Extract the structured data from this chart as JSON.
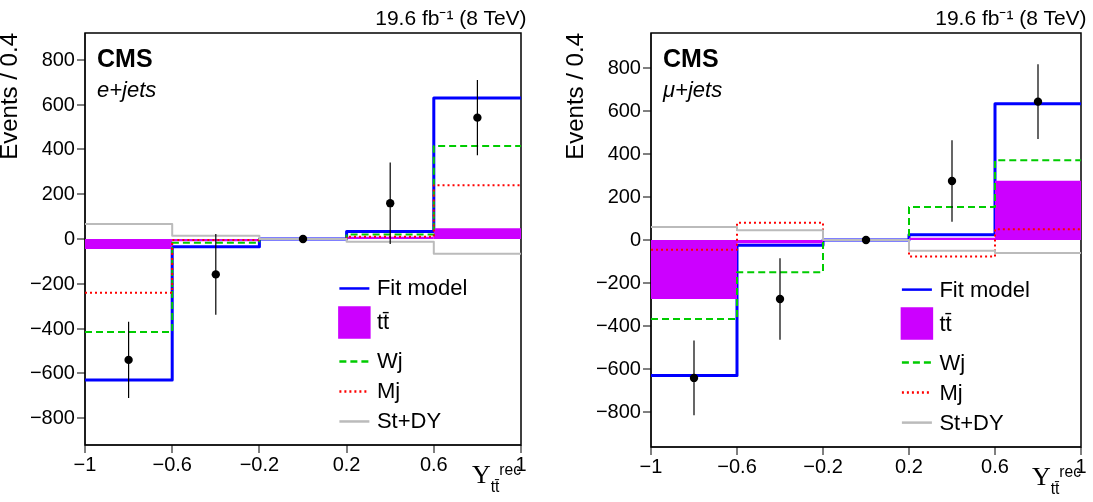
{
  "chart_data": [
    {
      "type": "histogram",
      "title": "19.6 fb⁻¹ (8 TeV)",
      "xlabel": "Υ$_{tt̄}$$^{rec}$",
      "ylabel": "Events / 0.4",
      "annotations": [
        "CMS",
        "e+jets"
      ],
      "bins": [
        -1,
        -0.6,
        -0.2,
        0.2,
        0.6,
        1
      ],
      "xlim": [
        -1,
        1
      ],
      "xticks": [
        {
          "value": -1,
          "label": "−1"
        },
        {
          "value": -0.6,
          "label": "−0.6"
        },
        {
          "value": -0.2,
          "label": "−0.2"
        },
        0.2,
        0.6,
        1
      ],
      "ylim": [
        -920,
        920
      ],
      "yticks": [
        {
          "value": -800,
          "label": "−800"
        },
        {
          "value": -600,
          "label": "−600"
        },
        {
          "value": -400,
          "label": "−400"
        },
        {
          "value": -200,
          "label": "−200"
        },
        0,
        200,
        400,
        600,
        800
      ],
      "legend": "bottom right",
      "series": [
        {
          "name": "Fit model",
          "type": "step",
          "color": "#0000ff",
          "line_style": "solid",
          "x": [
            -1,
            -0.6,
            -0.2,
            0.2,
            0.6,
            1
          ],
          "values": [
            -630,
            -35,
            0,
            33,
            630,
            630
          ]
        },
        {
          "name": "tt̄",
          "color": "#cc00ff",
          "values": [
            -45,
            -10,
            0,
            10,
            48
          ]
        },
        {
          "name": "Wj",
          "type": "step",
          "color": "#00cc00",
          "line_style": "dashed",
          "x": [
            -1,
            -0.6,
            -0.2,
            0.2,
            0.6,
            1
          ],
          "values": [
            -415,
            -17,
            0,
            20,
            415,
            415
          ]
        },
        {
          "name": "Mj",
          "type": "step",
          "color": "#ff0000",
          "line_style": "dotted",
          "x": [
            -1,
            -0.6,
            -0.2,
            0.2,
            0.6,
            1
          ],
          "values": [
            -240,
            -5,
            0,
            10,
            240,
            240
          ]
        },
        {
          "name": "St+DY",
          "type": "step",
          "color": "#bbbbbb",
          "line_style": "solid",
          "x": [
            -1,
            -0.6,
            -0.2,
            0.2,
            0.6,
            1
          ],
          "values": [
            67,
            14,
            0,
            -12,
            -66,
            -66
          ]
        },
        {
          "type": "scatter",
          "color": "#000000",
          "marker": "circle",
          "x": [
            -0.8,
            -0.4,
            0,
            0.4,
            0.8
          ],
          "values": [
            -540,
            -158,
            0,
            160,
            542
          ],
          "errors": [
            170,
            180,
            null,
            182,
            168
          ]
        }
      ]
    },
    {
      "type": "histogram",
      "title": "19.6 fb⁻¹ (8 TeV)",
      "xlabel": "Υ$_{tt̄}$$^{rec}$",
      "ylabel": "Events / 0.4",
      "annotations": [
        "CMS",
        "μ+jets"
      ],
      "bins": [
        -1,
        -0.6,
        -0.2,
        0.2,
        0.6,
        1
      ],
      "xlim": [
        -1,
        1
      ],
      "xticks": [
        {
          "value": -1,
          "label": "−1"
        },
        {
          "value": -0.6,
          "label": "−0.6"
        },
        {
          "value": -0.2,
          "label": "−0.2"
        },
        0.2,
        0.6,
        1
      ],
      "ylim": [
        -965,
        965
      ],
      "yticks": [
        {
          "value": -800,
          "label": "−800"
        },
        {
          "value": -600,
          "label": "−600"
        },
        {
          "value": -400,
          "label": "−400"
        },
        {
          "value": -200,
          "label": "−200"
        },
        0,
        200,
        400,
        600,
        800
      ],
      "legend": "bottom right",
      "series": [
        {
          "name": "Fit model",
          "type": "step",
          "color": "#0000ff",
          "line_style": "solid",
          "x": [
            -1,
            -0.6,
            -0.2,
            0.2,
            0.6,
            1
          ],
          "values": [
            -632,
            -24,
            0,
            24,
            635,
            635
          ]
        },
        {
          "name": "tt̄",
          "color": "#cc00ff",
          "values": [
            -275,
            -15,
            0,
            10,
            276
          ]
        },
        {
          "name": "Wj",
          "type": "step",
          "color": "#00cc00",
          "line_style": "dashed",
          "x": [
            -1,
            -0.6,
            -0.2,
            0.2,
            0.6,
            1
          ],
          "values": [
            -368,
            -150,
            0,
            154,
            372,
            372
          ]
        },
        {
          "name": "Mj",
          "type": "step",
          "color": "#ff0000",
          "line_style": "dotted",
          "x": [
            -1,
            -0.6,
            -0.2,
            0.2,
            0.6,
            1
          ],
          "values": [
            -45,
            81,
            0,
            -77,
            50,
            50
          ]
        },
        {
          "name": "St+DY",
          "type": "step",
          "color": "#bbbbbb",
          "line_style": "solid",
          "x": [
            -1,
            -0.6,
            -0.2,
            0.2,
            0.6,
            1
          ],
          "values": [
            61,
            45,
            0,
            -50,
            -61,
            -61
          ]
        },
        {
          "type": "scatter",
          "color": "#000000",
          "marker": "circle",
          "x": [
            -0.8,
            -0.4,
            0,
            0.4,
            0.8
          ],
          "values": [
            -643,
            -275,
            0,
            275,
            645
          ],
          "errors": [
            174,
            190,
            null,
            190,
            174
          ]
        }
      ]
    }
  ]
}
